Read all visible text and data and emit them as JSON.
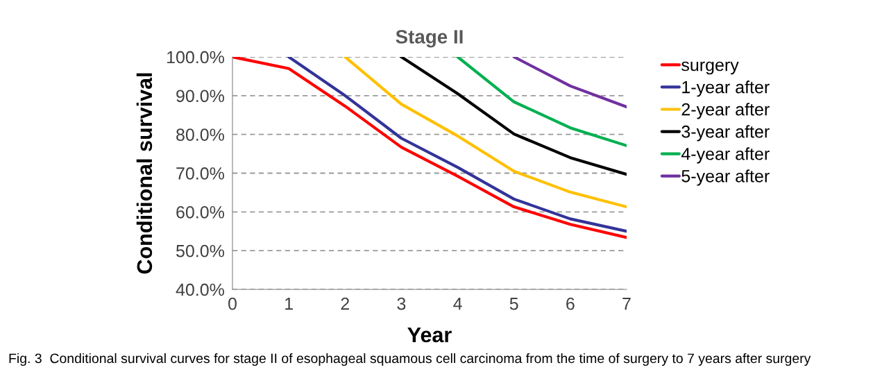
{
  "chart_data": {
    "type": "line",
    "title": "Stage II",
    "xlabel": "Year",
    "ylabel": "Conditional survival",
    "x": [
      0,
      1,
      2,
      3,
      4,
      5,
      6,
      7
    ],
    "xlim": [
      0,
      7
    ],
    "xticks": [
      0,
      1,
      2,
      3,
      4,
      5,
      6,
      7
    ],
    "ylim": [
      40,
      100
    ],
    "yticks": [
      {
        "value": 40,
        "label": "40.0%"
      },
      {
        "value": 50,
        "label": "50.0%"
      },
      {
        "value": 60,
        "label": "60.0%"
      },
      {
        "value": 70,
        "label": "70.0%"
      },
      {
        "value": 80,
        "label": "80.0%"
      },
      {
        "value": 90,
        "label": "90.0%"
      },
      {
        "value": 100,
        "label": "100.0%"
      }
    ],
    "grid": "y",
    "legend": "right",
    "marker": "none",
    "line_style": "solid",
    "series": [
      {
        "name": "surgery",
        "color": "#ff0000",
        "values": [
          100,
          97.0,
          87.3,
          76.7,
          69.2,
          61.3,
          56.8,
          53.4
        ]
      },
      {
        "name": "1-year after",
        "color": "#333399",
        "values": [
          null,
          100,
          90.0,
          79.0,
          71.5,
          63.3,
          58.2,
          55.0
        ]
      },
      {
        "name": "2-year after",
        "color": "#ffc000",
        "values": [
          null,
          null,
          100,
          87.8,
          79.6,
          70.5,
          65.1,
          61.3
        ]
      },
      {
        "name": "3-year after",
        "color": "#000000",
        "values": [
          null,
          null,
          null,
          100,
          90.5,
          80.1,
          74.0,
          69.7
        ]
      },
      {
        "name": "4-year after",
        "color": "#00b050",
        "values": [
          null,
          null,
          null,
          null,
          100,
          88.4,
          81.7,
          77.1
        ]
      },
      {
        "name": "5-year after",
        "color": "#7030a0",
        "values": [
          null,
          null,
          null,
          null,
          null,
          100,
          92.5,
          87.1
        ]
      }
    ],
    "annotations": [
      "Fig. 3  Conditional survival curves for stage II of esophageal squamous cell carcinoma from the time of surgery to 7 years after surgery"
    ]
  }
}
